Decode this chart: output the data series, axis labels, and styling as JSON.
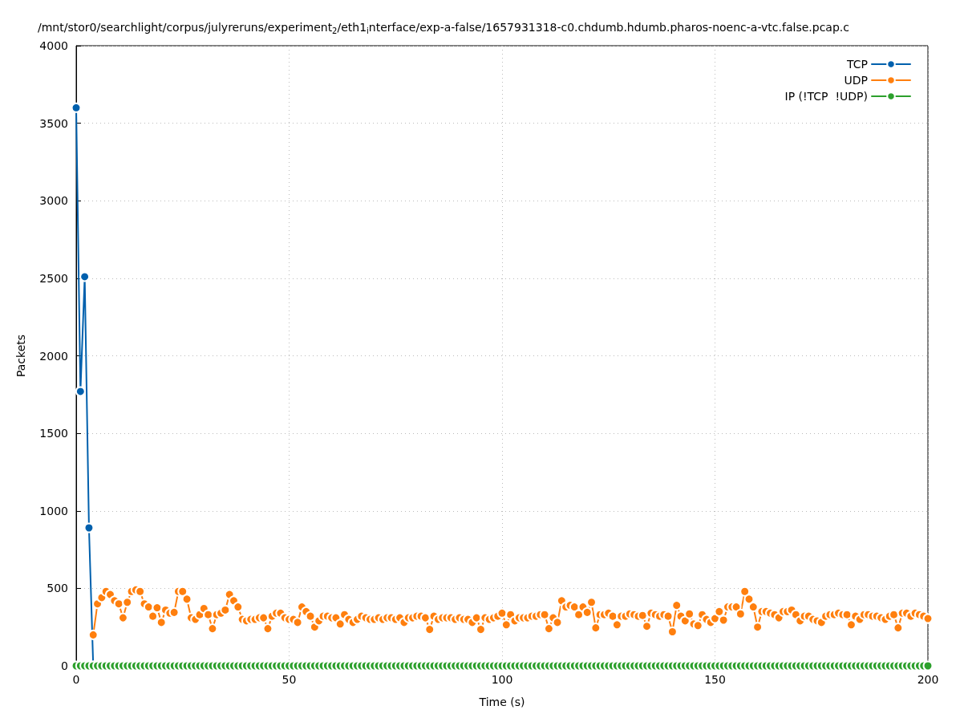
{
  "chart_data": {
    "type": "line",
    "title": "/mnt/stor0/searchlight/corpus/julyreruns/experiment$_{2}$/eth1$_{i}$nterface/exp-a-false/1657931318-c0.chdumb.hdumb.pharos-noenc-a-vtc.false.pcap.c",
    "xlabel": "Time (s)",
    "ylabel": "Packets",
    "x": [
      0,
      1,
      2,
      3,
      4,
      5,
      6,
      7,
      8,
      9,
      10,
      11,
      12,
      13,
      14,
      15,
      16,
      17,
      18,
      19,
      20,
      21,
      22,
      23,
      24,
      25,
      26,
      27,
      28,
      29,
      30,
      31,
      32,
      33,
      34,
      35,
      36,
      37,
      38,
      39,
      40,
      41,
      42,
      43,
      44,
      45,
      46,
      47,
      48,
      49,
      50,
      51,
      52,
      53,
      54,
      55,
      56,
      57,
      58,
      59,
      60,
      61,
      62,
      63,
      64,
      65,
      66,
      67,
      68,
      69,
      70,
      71,
      72,
      73,
      74,
      75,
      76,
      77,
      78,
      79,
      80,
      81,
      82,
      83,
      84,
      85,
      86,
      87,
      88,
      89,
      90,
      91,
      92,
      93,
      94,
      95,
      96,
      97,
      98,
      99,
      100,
      101,
      102,
      103,
      104,
      105,
      106,
      107,
      108,
      109,
      110,
      111,
      112,
      113,
      114,
      115,
      116,
      117,
      118,
      119,
      120,
      121,
      122,
      123,
      124,
      125,
      126,
      127,
      128,
      129,
      130,
      131,
      132,
      133,
      134,
      135,
      136,
      137,
      138,
      139,
      140,
      141,
      142,
      143,
      144,
      145,
      146,
      147,
      148,
      149,
      150,
      151,
      152,
      153,
      154,
      155,
      156,
      157,
      158,
      159,
      160,
      161,
      162,
      163,
      164,
      165,
      166,
      167,
      168,
      169,
      170,
      171,
      172,
      173,
      174,
      175,
      176,
      177,
      178,
      179,
      180,
      181,
      182,
      183,
      184,
      185,
      186,
      187,
      188,
      189,
      190,
      191,
      192,
      193,
      194,
      195,
      196,
      197,
      198,
      199,
      200
    ],
    "series": [
      {
        "name": "TCP",
        "color": "#0060ad",
        "values": [
          3600,
          1770,
          2510,
          890,
          0,
          null,
          null,
          null,
          null,
          null,
          null,
          null,
          null,
          null,
          null,
          null,
          null,
          null,
          null,
          null,
          null,
          null,
          null,
          null,
          null,
          null,
          null,
          null,
          null,
          null,
          null,
          null,
          null,
          null,
          null,
          null,
          null,
          null,
          null,
          null,
          null,
          null,
          null,
          null,
          null,
          null,
          null,
          null,
          null,
          null,
          null,
          null,
          null,
          null,
          null,
          null,
          null,
          null,
          null,
          null,
          null,
          null,
          null,
          null,
          null,
          null,
          null,
          null,
          null,
          null,
          null,
          null,
          null,
          null,
          null,
          null,
          null,
          null,
          null,
          null,
          null,
          null,
          null,
          null,
          null,
          null,
          null,
          null,
          null,
          null,
          null,
          null,
          null,
          null,
          null,
          null,
          null,
          null,
          null,
          null,
          null,
          null,
          null,
          null,
          null,
          null,
          null,
          null,
          null,
          null,
          null,
          null,
          null,
          null,
          null,
          null,
          null,
          null,
          null,
          null,
          null,
          null,
          null,
          null,
          null,
          null,
          null,
          null,
          null,
          null,
          null,
          null,
          null,
          null,
          null,
          null,
          null,
          null,
          null,
          null,
          null,
          null,
          null,
          null,
          null,
          null,
          null,
          null,
          null,
          null,
          null,
          null,
          null,
          null,
          null,
          null,
          null,
          null,
          null,
          null,
          null,
          null,
          null,
          null,
          null,
          null,
          null,
          null,
          null,
          null,
          null,
          null,
          null,
          null,
          null,
          null,
          null,
          null,
          null,
          null,
          null,
          null,
          null,
          null,
          null,
          null,
          null,
          null,
          null,
          null,
          null,
          null,
          null,
          null,
          null,
          null,
          null,
          null,
          null,
          null,
          null
        ]
      },
      {
        "name": "UDP",
        "color": "#ff7f0e",
        "values": [
          null,
          null,
          null,
          null,
          200,
          400,
          440,
          480,
          460,
          420,
          400,
          310,
          410,
          480,
          490,
          480,
          400,
          380,
          320,
          375,
          280,
          360,
          340,
          345,
          480,
          480,
          430,
          310,
          300,
          330,
          370,
          330,
          240,
          330,
          340,
          360,
          460,
          420,
          380,
          300,
          290,
          300,
          300,
          310,
          310,
          240,
          320,
          340,
          340,
          310,
          300,
          300,
          280,
          380,
          350,
          320,
          250,
          290,
          320,
          320,
          310,
          310,
          270,
          330,
          300,
          280,
          300,
          320,
          310,
          300,
          300,
          310,
          300,
          310,
          310,
          300,
          310,
          280,
          310,
          310,
          320,
          320,
          310,
          235,
          320,
          300,
          310,
          310,
          310,
          300,
          310,
          300,
          300,
          280,
          310,
          235,
          310,
          300,
          310,
          320,
          340,
          265,
          330,
          290,
          310,
          310,
          310,
          320,
          320,
          330,
          330,
          240,
          310,
          280,
          420,
          380,
          390,
          380,
          330,
          380,
          345,
          410,
          245,
          330,
          330,
          340,
          320,
          265,
          320,
          320,
          335,
          330,
          320,
          325,
          255,
          340,
          330,
          320,
          330,
          320,
          220,
          390,
          320,
          290,
          335,
          270,
          260,
          330,
          300,
          280,
          305,
          350,
          295,
          380,
          380,
          380,
          335,
          480,
          430,
          380,
          250,
          350,
          350,
          340,
          330,
          310,
          350,
          350,
          360,
          330,
          290,
          320,
          320,
          300,
          290,
          280,
          320,
          330,
          330,
          340,
          330,
          330,
          265,
          320,
          300,
          330,
          330,
          320,
          320,
          310,
          300,
          320,
          330,
          245,
          340,
          340,
          320,
          340,
          330,
          320,
          305
        ]
      },
      {
        "name": "IP (!TCP  !UDP)",
        "color": "#2ca02c",
        "values": [
          0,
          0,
          0,
          0,
          0,
          0,
          0,
          0,
          0,
          0,
          0,
          0,
          0,
          0,
          0,
          0,
          0,
          0,
          0,
          0,
          0,
          0,
          0,
          0,
          0,
          0,
          0,
          0,
          0,
          0,
          0,
          0,
          0,
          0,
          0,
          0,
          0,
          0,
          0,
          0,
          0,
          0,
          0,
          0,
          0,
          0,
          0,
          0,
          0,
          0,
          0,
          0,
          0,
          0,
          0,
          0,
          0,
          0,
          0,
          0,
          0,
          0,
          0,
          0,
          0,
          0,
          0,
          0,
          0,
          0,
          0,
          0,
          0,
          0,
          0,
          0,
          0,
          0,
          0,
          0,
          0,
          0,
          0,
          0,
          0,
          0,
          0,
          0,
          0,
          0,
          0,
          0,
          0,
          0,
          0,
          0,
          0,
          0,
          0,
          0,
          0,
          0,
          0,
          0,
          0,
          0,
          0,
          0,
          0,
          0,
          0,
          0,
          0,
          0,
          0,
          0,
          0,
          0,
          0,
          0,
          0,
          0,
          0,
          0,
          0,
          0,
          0,
          0,
          0,
          0,
          0,
          0,
          0,
          0,
          0,
          0,
          0,
          0,
          0,
          0,
          0,
          0,
          0,
          0,
          0,
          0,
          0,
          0,
          0,
          0,
          0,
          0,
          0,
          0,
          0,
          0,
          0,
          0,
          0,
          0,
          0,
          0,
          0,
          0,
          0,
          0,
          0,
          0,
          0,
          0,
          0,
          0,
          0,
          0,
          0,
          0,
          0,
          0,
          0,
          0,
          0,
          0,
          0,
          0,
          0,
          0,
          0,
          0,
          0,
          0,
          0,
          0,
          0,
          0,
          0,
          0,
          0,
          0,
          0,
          0,
          0
        ]
      }
    ],
    "xlim": [
      0,
      200
    ],
    "xticks": [
      0,
      50,
      100,
      150,
      200
    ],
    "ylim": [
      0,
      4000
    ],
    "yticks": [
      0,
      500,
      1000,
      1500,
      2000,
      2500,
      3000,
      3500,
      4000
    ],
    "grid": true,
    "legend": "top right",
    "marker": "circle",
    "line_style": "solid"
  }
}
